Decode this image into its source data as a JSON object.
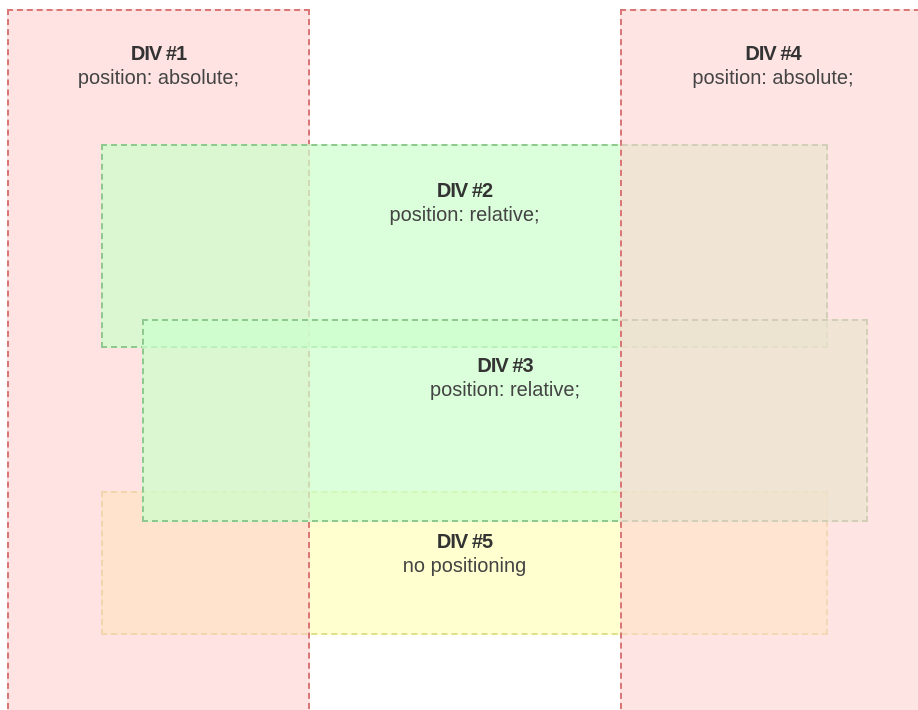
{
  "boxes": {
    "div1": {
      "title": "DIV #1",
      "desc": "position: absolute;"
    },
    "div2": {
      "title": "DIV #2",
      "desc": "position: relative;"
    },
    "div3": {
      "title": "DIV #3",
      "desc": "position: relative;"
    },
    "div4": {
      "title": "DIV #4",
      "desc": "position: absolute;"
    },
    "div5": {
      "title": "DIV #5",
      "desc": "no positioning"
    }
  },
  "colors": {
    "absolute_fill": "#ffcccc",
    "absolute_border": "#d97777",
    "relative_fill": "#ccffcc",
    "relative_border": "#8fc98f",
    "static_fill": "#ffffcc",
    "static_border": "#e0e08a"
  }
}
